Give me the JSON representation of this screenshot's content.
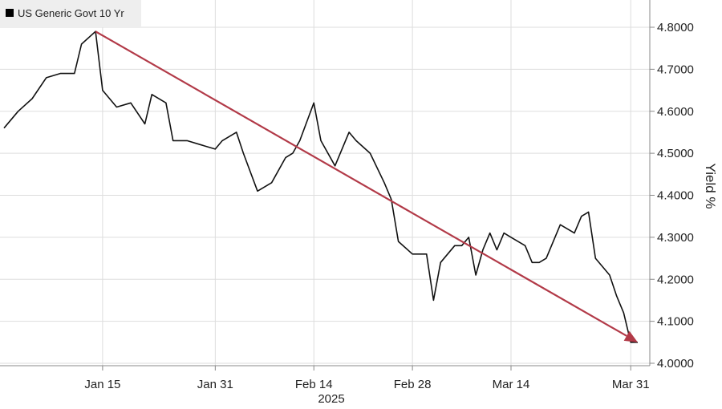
{
  "chart_data": {
    "type": "line",
    "legend": {
      "label": "US Generic Govt 10 Yr",
      "placement": "top-left"
    },
    "ylabel": "Yield %",
    "xlabel": "2025",
    "ylim": [
      4.0,
      4.8
    ],
    "y_ticks": [
      "4.0000",
      "4.1000",
      "4.2000",
      "4.3000",
      "4.4000",
      "4.5000",
      "4.6000",
      "4.7000",
      "4.8000"
    ],
    "x_ticks": [
      "Jan 15",
      "Jan 31",
      "Feb 14",
      "Feb 28",
      "Mar 14",
      "Mar 31"
    ],
    "x_tick_days": [
      14,
      30,
      44,
      58,
      72,
      89
    ],
    "grid": true,
    "series": [
      {
        "name": "US Generic Govt 10 Yr",
        "color": "#111111",
        "x": [
          0,
          2,
          4,
          6,
          8,
          10,
          11,
          13,
          14,
          16,
          18,
          20,
          21,
          23,
          24,
          26,
          28,
          30,
          31,
          33,
          34,
          36,
          38,
          40,
          41,
          42,
          44,
          45,
          47,
          49,
          50,
          52,
          54,
          55,
          56,
          58,
          60,
          61,
          62,
          64,
          65,
          66,
          67,
          68,
          69,
          70,
          71,
          72,
          74,
          75,
          76,
          77,
          79,
          81,
          82,
          83,
          84,
          86,
          87,
          88,
          89,
          90
        ],
        "values": [
          4.56,
          4.6,
          4.63,
          4.68,
          4.69,
          4.69,
          4.76,
          4.79,
          4.65,
          4.61,
          4.62,
          4.57,
          4.64,
          4.62,
          4.53,
          4.53,
          4.52,
          4.51,
          4.53,
          4.55,
          4.5,
          4.41,
          4.43,
          4.49,
          4.5,
          4.53,
          4.62,
          4.53,
          4.47,
          4.55,
          4.53,
          4.5,
          4.43,
          4.39,
          4.29,
          4.26,
          4.26,
          4.15,
          4.24,
          4.28,
          4.28,
          4.3,
          4.21,
          4.27,
          4.31,
          4.27,
          4.31,
          4.3,
          4.28,
          4.24,
          4.24,
          4.25,
          4.33,
          4.31,
          4.35,
          4.36,
          4.25,
          4.21,
          4.16,
          4.12,
          4.05,
          4.05
        ]
      }
    ],
    "trend_arrow": {
      "color": "#b23a48",
      "from": {
        "x": 13,
        "y": 4.79
      },
      "to": {
        "x": 90,
        "y": 4.05
      }
    }
  }
}
